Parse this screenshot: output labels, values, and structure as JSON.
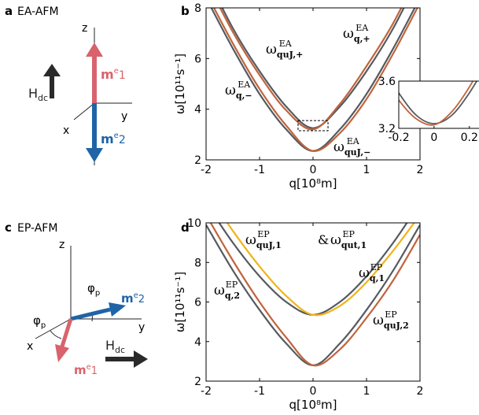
{
  "panels": {
    "a": {
      "letter": "a",
      "title": "EA-AFM"
    },
    "b": {
      "letter": "b"
    },
    "c": {
      "letter": "c",
      "title": "EP-AFM"
    },
    "d": {
      "letter": "d"
    }
  },
  "sketch_a": {
    "axis_z": "z",
    "axis_y": "y",
    "axis_x": "x",
    "field": "H",
    "field_sub": "dc",
    "m1": "m",
    "m1_sup": "e",
    "m1_sub": "1",
    "m2": "m",
    "m2_sup": "e",
    "m2_sub": "2"
  },
  "sketch_c": {
    "axis_z": "z",
    "axis_y": "y",
    "axis_x": "x",
    "angle1": "φ",
    "angle1_sub": "p",
    "angle2": "φ",
    "angle2_sub": "p",
    "field": "H",
    "field_sub": "dc",
    "m1": "m",
    "m1_sup": "e",
    "m1_sub": "1",
    "m2": "m",
    "m2_sup": "e",
    "m2_sub": "2"
  },
  "colors": {
    "gray": "#555a5f",
    "brown": "#c0643c",
    "orange": "#f0b419",
    "red_arrow": "#d9636c",
    "blue_arrow": "#1e64a6",
    "dark_arrow": "#2a2a2a",
    "annot_brown": "#9a5a2a",
    "annot_orange": "#e88a10"
  },
  "chart_data": [
    {
      "id": "b",
      "type": "line",
      "xlabel": "q[10⁸m]",
      "ylabel": "ω[10¹¹s⁻¹]",
      "xlim": [
        -2,
        2
      ],
      "ylim": [
        2,
        8
      ],
      "xticks": [
        -2,
        -1,
        0,
        1,
        2
      ],
      "yticks": [
        2,
        4,
        6,
        8
      ],
      "series": [
        {
          "name": "ω_q,+ (EA)",
          "color": "gray",
          "x": [
            -2,
            -1.5,
            -1,
            -0.5,
            0,
            0.5,
            1,
            1.5,
            2
          ],
          "y": [
            9.3,
            7.2,
            5.5,
            4.1,
            3.25,
            4.1,
            5.5,
            7.2,
            9.3
          ]
        },
        {
          "name": "ω_quJ,+ (EA)",
          "color": "brown",
          "x": [
            -2,
            -1.5,
            -1,
            -0.5,
            0,
            0.5,
            1,
            1.5,
            2
          ],
          "y": [
            9.1,
            7.05,
            5.35,
            3.95,
            3.2,
            4.2,
            5.7,
            7.4,
            9.5
          ]
        },
        {
          "name": "ω_q,− (EA)",
          "color": "gray",
          "x": [
            -2,
            -1.5,
            -1,
            -0.5,
            0,
            0.5,
            1,
            1.5,
            2
          ],
          "y": [
            8.4,
            6.4,
            4.6,
            3.2,
            2.35,
            3.2,
            4.6,
            6.4,
            8.4
          ]
        },
        {
          "name": "ω_quJ,− (EA)",
          "color": "brown",
          "x": [
            -2,
            -1.5,
            -1,
            -0.5,
            0,
            0.5,
            1,
            1.5,
            2
          ],
          "y": [
            8.6,
            6.6,
            4.8,
            3.35,
            2.35,
            3.05,
            4.4,
            6.2,
            8.2
          ]
        }
      ],
      "labels": {
        "top_right": {
          "sym": "ω",
          "sub": "q,+",
          "sup": "EA"
        },
        "mid_left": {
          "sym": "ω",
          "sub": "q,−",
          "sup": "EA"
        },
        "brown_top": {
          "sym": "ω",
          "sub": "quJ,+",
          "sup": "EA"
        },
        "brown_bottom": {
          "sym": "ω",
          "sub": "quJ,−",
          "sup": "EA"
        }
      },
      "inset": {
        "xlim": [
          -0.2,
          0.2
        ],
        "ylim": [
          3.2,
          3.6
        ],
        "xticks": [
          "-0.2",
          "0",
          "0.2"
        ],
        "yticks": [
          "3.2",
          "3.6"
        ],
        "series": [
          {
            "name": "gray",
            "color": "gray",
            "x": [
              -0.3,
              -0.2,
              -0.1,
              0,
              0.1,
              0.2,
              0.3
            ],
            "y": [
              3.75,
              3.5,
              3.31,
              3.24,
              3.31,
              3.5,
              3.75
            ]
          },
          {
            "name": "brown",
            "color": "brown",
            "x": [
              -0.3,
              -0.2,
              -0.1,
              0,
              0.1,
              0.2,
              0.3
            ],
            "y": [
              3.68,
              3.44,
              3.28,
              3.23,
              3.34,
              3.55,
              3.82
            ]
          }
        ]
      }
    },
    {
      "id": "d",
      "type": "line",
      "xlabel": "q[10⁸m]",
      "ylabel": "ω[10¹¹s⁻¹]",
      "xlim": [
        -2,
        2
      ],
      "ylim": [
        2,
        10
      ],
      "xticks": [
        -2,
        -1,
        0,
        1,
        2
      ],
      "yticks": [
        2,
        4,
        6,
        8,
        10
      ],
      "series": [
        {
          "name": "ω_q,1 (EP)",
          "color": "gray",
          "x": [
            -2,
            -1.5,
            -1,
            -0.5,
            0,
            0.5,
            1,
            1.5,
            2
          ],
          "y": [
            11.0,
            9.0,
            7.3,
            6.0,
            5.35,
            6.0,
            7.3,
            9.0,
            11.0
          ]
        },
        {
          "name": "ω_quJ,1 & ω_qut,1 (EP)",
          "color": "orange",
          "x": [
            -2,
            -1.5,
            -1,
            -0.5,
            0,
            0.5,
            1,
            1.5,
            2
          ],
          "y": [
            11.6,
            9.6,
            7.8,
            6.3,
            5.35,
            5.8,
            7.0,
            8.6,
            10.4
          ]
        },
        {
          "name": "ω_q,2 (EP)",
          "color": "gray",
          "x": [
            -2,
            -1.5,
            -1,
            -0.5,
            0,
            0.5,
            1,
            1.5,
            2
          ],
          "y": [
            9.9,
            7.6,
            5.6,
            3.9,
            2.8,
            3.9,
            5.6,
            7.6,
            9.9
          ]
        },
        {
          "name": "ω_quJ,2 (EP)",
          "color": "brown",
          "x": [
            -2,
            -1.5,
            -1,
            -0.5,
            0,
            0.5,
            1,
            1.5,
            2
          ],
          "y": [
            10.4,
            8.1,
            6.0,
            4.2,
            2.8,
            3.6,
            5.2,
            7.1,
            9.4
          ]
        }
      ],
      "labels": {
        "orange_top": {
          "sym1": "ω",
          "sub1": "quJ,1",
          "sup1": "EP",
          "amp": "&",
          "sym2": "ω",
          "sub2": "qut,1",
          "sup2": "EP"
        },
        "gray_right": {
          "sym": "ω",
          "sub": "q,1",
          "sup": "EP"
        },
        "gray_left": {
          "sym": "ω",
          "sub": "q,2",
          "sup": "EP"
        },
        "brown_right": {
          "sym": "ω",
          "sub": "quJ,2",
          "sup": "EP"
        }
      }
    }
  ]
}
